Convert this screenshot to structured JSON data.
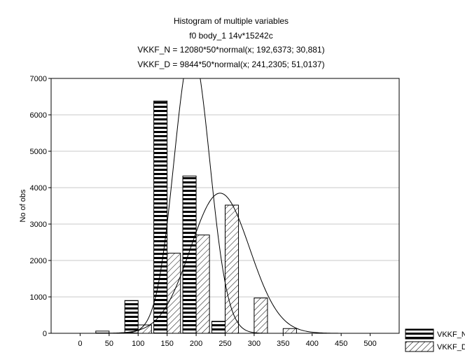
{
  "chart_data": {
    "type": "bar",
    "title": "Histogram of multiple variables",
    "subtitle": "f0 body_1 14v*15242c",
    "fit_lines": [
      "VKKF_N = 12080*50*normal(x; 192,6373; 30,881)",
      "VKKF_D = 9844*50*normal(x; 241,2305; 51,0137)"
    ],
    "xlabel": "",
    "ylabel": "No of obs",
    "categories": [
      "0",
      "50",
      "100",
      "150",
      "200",
      "250",
      "300",
      "350",
      "400",
      "450",
      "500"
    ],
    "x": [
      0,
      50,
      100,
      150,
      200,
      250,
      300,
      350,
      400,
      450,
      500
    ],
    "ylim": [
      0,
      7000
    ],
    "yticks": [
      0,
      1000,
      2000,
      3000,
      4000,
      5000,
      6000,
      7000
    ],
    "grid": true,
    "legend_position": "bottom-right",
    "series": [
      {
        "name": "VKKF_N",
        "pattern": "horizontal-stripes",
        "values": [
          0,
          60,
          900,
          6380,
          4320,
          330,
          0,
          0,
          0,
          0,
          0
        ],
        "fit": {
          "n": 12080,
          "bin": 50,
          "mean": 192.6373,
          "sd": 30.881
        }
      },
      {
        "name": "VKKF_D",
        "pattern": "diagonal-hatch",
        "values": [
          0,
          0,
          230,
          2200,
          2700,
          3520,
          970,
          130,
          0,
          0,
          0
        ],
        "fit": {
          "n": 9844,
          "bin": 50,
          "mean": 241.2305,
          "sd": 51.0137
        }
      }
    ]
  }
}
